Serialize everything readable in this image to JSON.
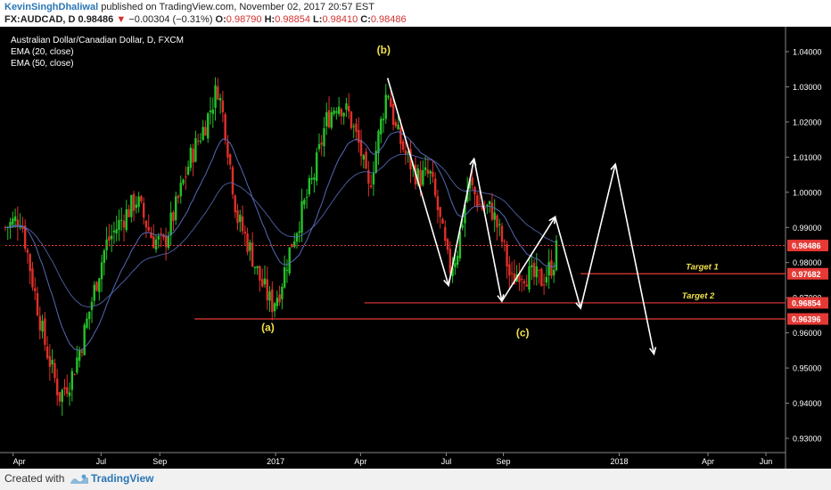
{
  "header": {
    "author": "KevinSinghDhaliwal",
    "published": "published on TradingView.com, November 02, 2017 20:57 EST",
    "symbol": "FX:AUDCAD, D",
    "last": "0.98486",
    "change_arrow": "▼",
    "change": "−0.00304 (−0.31%)",
    "o_label": "O:",
    "o_value": "0.98790",
    "h_label": "H:",
    "h_value": "0.98854",
    "l_label": "L:",
    "l_value": "0.98410",
    "c_label": "C:",
    "c_value": "0.98486"
  },
  "footer": {
    "created_with": "Created with",
    "brand": "TradingView"
  },
  "chart_data": {
    "type": "candlestick",
    "legend": [
      "Australian Dollar/Canadian Dollar, D, FXCM",
      "EMA (20, close)",
      "EMA (50, close)"
    ],
    "legend_position": "top-left",
    "y_axis": {
      "position": "right",
      "range": [
        0.925,
        1.045
      ],
      "ticks": [
        "1.04000",
        "1.03000",
        "1.02000",
        "1.01000",
        "1.00000",
        "0.99000",
        "0.98000",
        "0.97000",
        "0.96000",
        "0.95000",
        "0.94000",
        "0.93000"
      ]
    },
    "x_axis": {
      "range": [
        0,
        1
      ],
      "ticks": [
        {
          "label": "Apr",
          "t": 0.01
        },
        {
          "label": "Jul",
          "t": 0.124
        },
        {
          "label": "Sep",
          "t": 0.2
        },
        {
          "label": "2017",
          "t": 0.35
        },
        {
          "label": "Apr",
          "t": 0.46
        },
        {
          "label": "Jul",
          "t": 0.571
        },
        {
          "label": "Sep",
          "t": 0.645
        },
        {
          "label": "2018",
          "t": 0.795
        },
        {
          "label": "Apr",
          "t": 0.91
        },
        {
          "label": "Jun",
          "t": 0.985
        }
      ]
    },
    "price_anchors": [
      [
        0.0,
        0.99
      ],
      [
        0.02,
        0.993
      ],
      [
        0.035,
        0.975
      ],
      [
        0.05,
        0.958
      ],
      [
        0.07,
        0.942
      ],
      [
        0.085,
        0.947
      ],
      [
        0.1,
        0.958
      ],
      [
        0.115,
        0.972
      ],
      [
        0.13,
        0.985
      ],
      [
        0.15,
        0.992
      ],
      [
        0.17,
        0.998
      ],
      [
        0.19,
        0.987
      ],
      [
        0.205,
        0.985
      ],
      [
        0.22,
        0.995
      ],
      [
        0.24,
        1.01
      ],
      [
        0.26,
        1.02
      ],
      [
        0.275,
        1.03
      ],
      [
        0.285,
        1.018
      ],
      [
        0.3,
        0.993
      ],
      [
        0.315,
        0.985
      ],
      [
        0.33,
        0.975
      ],
      [
        0.345,
        0.968
      ],
      [
        0.355,
        0.972
      ],
      [
        0.37,
        0.985
      ],
      [
        0.385,
        0.995
      ],
      [
        0.4,
        1.005
      ],
      [
        0.415,
        1.02
      ],
      [
        0.43,
        1.026
      ],
      [
        0.445,
        1.022
      ],
      [
        0.46,
        1.012
      ],
      [
        0.47,
        1.0
      ],
      [
        0.48,
        1.012
      ],
      [
        0.495,
        1.03
      ],
      [
        0.505,
        1.018
      ],
      [
        0.52,
        1.01
      ],
      [
        0.535,
        1.004
      ],
      [
        0.55,
        1.005
      ],
      [
        0.56,
        0.995
      ],
      [
        0.575,
        0.978
      ],
      [
        0.585,
        0.983
      ],
      [
        0.6,
        1.003
      ],
      [
        0.615,
        0.996
      ],
      [
        0.63,
        0.995
      ],
      [
        0.645,
        0.985
      ],
      [
        0.655,
        0.974
      ],
      [
        0.665,
        0.978
      ],
      [
        0.68,
        0.976
      ],
      [
        0.695,
        0.975
      ],
      [
        0.71,
        0.98
      ],
      [
        0.715,
        0.985
      ]
    ],
    "current_price": {
      "value": 0.98486,
      "label": "0.98486",
      "color": "#e53935"
    },
    "levels": [
      {
        "value": 0.97682,
        "label": "0.97682",
        "start_t": 0.745,
        "target": "Target 1"
      },
      {
        "value": 0.96854,
        "label": "0.96854",
        "start_t": 0.465,
        "target": "Target 2"
      },
      {
        "value": 0.96396,
        "label": "0.96396",
        "start_t": 0.245,
        "target": ""
      }
    ],
    "wave_labels": [
      {
        "text": "(a)",
        "t": 0.34,
        "y": 0.9605
      },
      {
        "text": "(b)",
        "t": 0.49,
        "y": 1.0395
      },
      {
        "text": "(c)",
        "t": 0.67,
        "y": 0.959
      }
    ],
    "projection_path": [
      [
        0.495,
        1.0325
      ],
      [
        0.574,
        0.9735
      ],
      [
        0.607,
        1.0095
      ],
      [
        0.643,
        0.969
      ],
      [
        0.712,
        0.993
      ],
      [
        0.745,
        0.967
      ],
      [
        0.79,
        1.008
      ],
      [
        0.84,
        0.954
      ]
    ],
    "colors": {
      "up": "#26c12a",
      "down": "#e0302a",
      "ema": "#5b6fbf",
      "level": "#e53935",
      "annotation": "#f2e04a",
      "projection": "#ffffff"
    }
  }
}
